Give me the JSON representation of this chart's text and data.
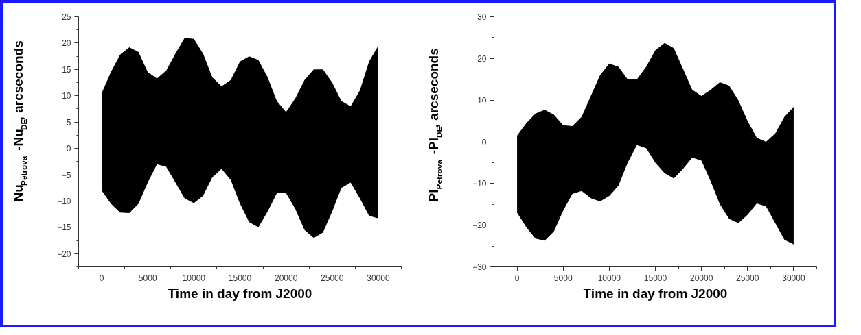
{
  "chart_data": [
    {
      "type": "line",
      "xlabel": "Time in day from J2000",
      "ylabel": "Nu$_{Petrova}$-Nu$_{DE}$, arcseconds",
      "xlim": [
        -2500,
        32500
      ],
      "ylim": [
        -22.5,
        25
      ],
      "xticks": [
        0,
        5000,
        10000,
        15000,
        20000,
        25000,
        30000
      ],
      "yticks": [
        -20,
        -15,
        -10,
        -5,
        0,
        5,
        10,
        15,
        20,
        25
      ],
      "grid": false,
      "series": [
        {
          "color": "#000000",
          "x": [
            0,
            1000,
            2000,
            3000,
            4000,
            5000,
            6000,
            7000,
            8000,
            9000,
            10000,
            11000,
            12000,
            13000,
            14000,
            15000,
            16000,
            17000,
            18000,
            19000,
            20000,
            21000,
            22000,
            23000,
            24000,
            25000,
            26000,
            27000,
            28000,
            29000,
            30000
          ],
          "values": [
            null,
            null,
            null,
            null,
            null,
            null,
            null,
            null,
            null,
            null,
            null,
            null,
            null,
            null,
            null,
            null,
            null,
            null,
            null,
            null,
            null,
            null,
            null,
            null,
            null,
            null,
            null,
            null,
            null,
            null,
            null
          ],
          "upper": [
            10.5,
            14.5,
            17.8,
            19.2,
            18.3,
            14.5,
            13.3,
            14.8,
            18,
            21,
            20.8,
            18,
            13.5,
            11.8,
            13,
            16.5,
            17.5,
            16.8,
            13.5,
            9,
            6.9,
            9.5,
            13,
            15,
            15,
            12.5,
            9,
            8,
            11,
            16.5,
            19.5
          ],
          "lower": [
            -8,
            -10.5,
            -12.2,
            -12.3,
            -10.5,
            -6.5,
            -3,
            -3.5,
            -6.5,
            -9.5,
            -10.4,
            -9,
            -5.5,
            -3.9,
            -6,
            -10.5,
            -14,
            -15,
            -12,
            -8.5,
            -8.5,
            -11.5,
            -15.5,
            -17,
            -16,
            -12,
            -7.5,
            -6.5,
            -9.5,
            -12.8,
            -13.3
          ]
        }
      ]
    },
    {
      "type": "line",
      "xlabel": "Time in day from J2000",
      "ylabel": "Pl$_{Petrova}$-Pl$_{DE}$, arcseconds",
      "xlim": [
        -2500,
        32500
      ],
      "ylim": [
        -30,
        30
      ],
      "xticks": [
        0,
        5000,
        10000,
        15000,
        20000,
        25000,
        30000
      ],
      "yticks": [
        -30,
        -20,
        -10,
        0,
        10,
        20,
        30
      ],
      "grid": false,
      "series": [
        {
          "color": "#000000",
          "x": [
            0,
            1000,
            2000,
            3000,
            4000,
            5000,
            6000,
            7000,
            8000,
            9000,
            10000,
            11000,
            12000,
            13000,
            14000,
            15000,
            16000,
            17000,
            18000,
            19000,
            20000,
            21000,
            22000,
            23000,
            24000,
            25000,
            26000,
            27000,
            28000,
            29000,
            30000
          ],
          "values": [
            null,
            null,
            null,
            null,
            null,
            null,
            null,
            null,
            null,
            null,
            null,
            null,
            null,
            null,
            null,
            null,
            null,
            null,
            null,
            null,
            null,
            null,
            null,
            null,
            null,
            null,
            null,
            null,
            null,
            null,
            null
          ],
          "upper": [
            1.5,
            4.5,
            6.8,
            7.7,
            6.5,
            4,
            3.8,
            6,
            11,
            16,
            18.8,
            18,
            15,
            15,
            18,
            22,
            23.7,
            22.5,
            17.5,
            12.5,
            11,
            12.5,
            14.3,
            13.5,
            10,
            5,
            1,
            0,
            2,
            6,
            8.4
          ],
          "lower": [
            -17,
            -20.5,
            -23.2,
            -23.7,
            -21.5,
            -16.5,
            -12.5,
            -11.8,
            -13.5,
            -14.3,
            -13,
            -10.5,
            -5,
            -0.8,
            -1.5,
            -5,
            -7.5,
            -8.8,
            -6.5,
            -3.8,
            -4.5,
            -9.5,
            -15,
            -18.5,
            -19.5,
            -17.5,
            -14.8,
            -15.5,
            -19.5,
            -23.5,
            -24.6
          ]
        }
      ]
    }
  ]
}
